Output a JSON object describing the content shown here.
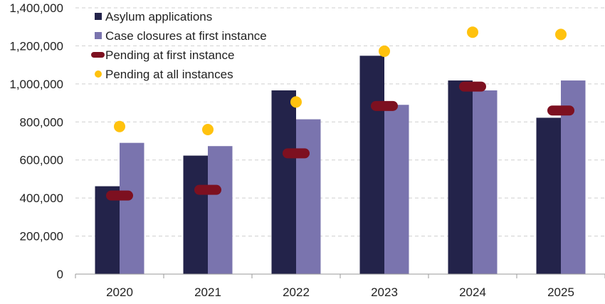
{
  "chart_data": {
    "type": "bar",
    "categories": [
      "2020",
      "2021",
      "2022",
      "2023",
      "2024",
      "2025"
    ],
    "series": [
      {
        "name": "Asylum applications",
        "kind": "bar",
        "color": "#23234a",
        "values": [
          462000,
          623000,
          966000,
          1148000,
          1018000,
          822000
        ]
      },
      {
        "name": "Case closures at first instance",
        "kind": "bar",
        "color": "#7a74ae",
        "values": [
          690000,
          673000,
          814000,
          890000,
          966000,
          1018000
        ]
      },
      {
        "name": "Pending at first instance",
        "kind": "dash-marker",
        "color": "#7d1020",
        "values": [
          413000,
          443000,
          635000,
          884000,
          986000,
          860000
        ]
      },
      {
        "name": "Pending at all instances",
        "kind": "dot-marker",
        "color": "#ffc20e",
        "values": [
          776000,
          760000,
          905000,
          1172000,
          1272000,
          1260000
        ]
      }
    ],
    "y_ticks": [
      "0",
      "200,000",
      "400,000",
      "600,000",
      "800,000",
      "1,000,000",
      "1,200,000",
      "1,400,000"
    ],
    "ylim": [
      0,
      1400000
    ],
    "grid": true,
    "legend": "top-left"
  }
}
